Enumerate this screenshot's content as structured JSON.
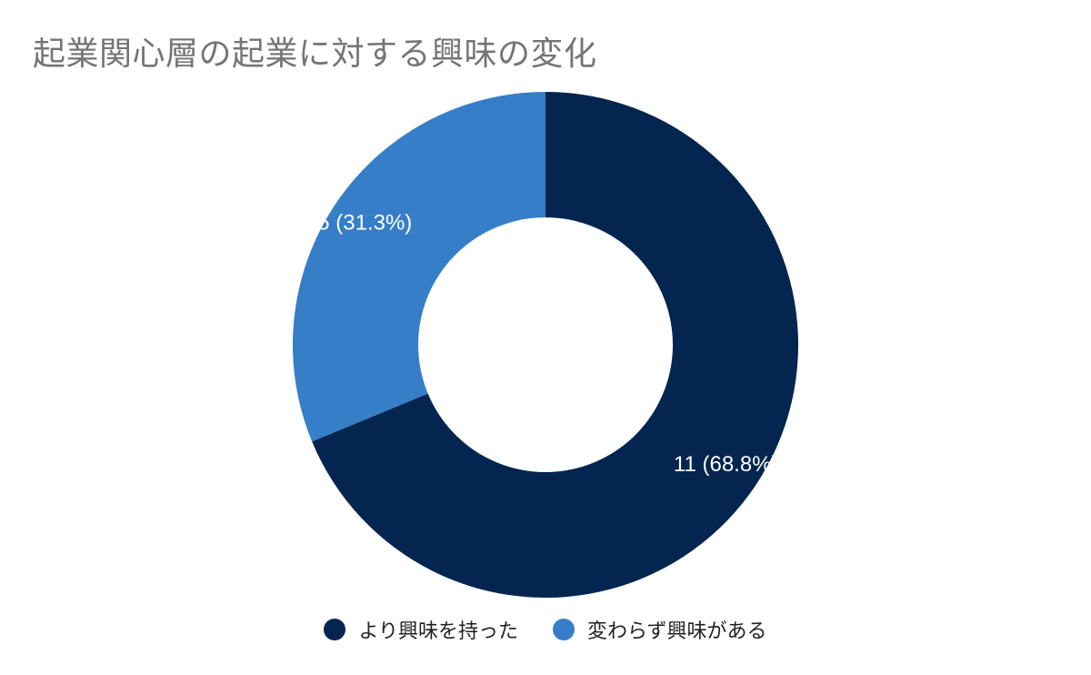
{
  "chart_data": {
    "type": "pie",
    "donut": true,
    "title": "起業関心層の起業に対する興味の変化",
    "categories": [
      "より興味を持った",
      "変わらず興味がある"
    ],
    "values": [
      11,
      5
    ],
    "data_labels": [
      "11 (68.8%)",
      "5 (31.3%)"
    ],
    "colors": [
      "#03254f",
      "#367ec8"
    ],
    "legend_position": "bottom"
  }
}
